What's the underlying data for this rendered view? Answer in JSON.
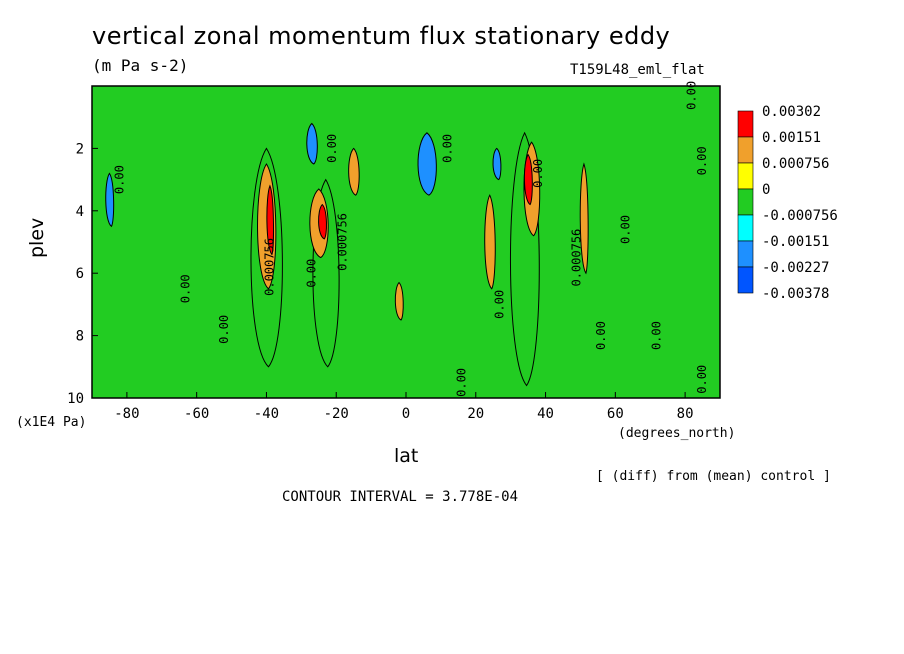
{
  "title": "vertical zonal momentum flux stationary eddy",
  "units": "(m Pa s-2)",
  "run_label": "T159L48_eml_flat",
  "y_unit": "(x1E4 Pa)",
  "x_unit": "(degrees_north)",
  "note": "[ (diff) from (mean) control ]",
  "contour_interval": "CONTOUR INTERVAL = 3.778E-04",
  "chart_data": {
    "type": "heatmap",
    "xlabel": "lat",
    "ylabel": "plev",
    "xlim": [
      -90,
      90
    ],
    "ylim": [
      0,
      10
    ],
    "x_ticks": [
      -80,
      -60,
      -40,
      -20,
      0,
      20,
      40,
      60,
      80
    ],
    "y_ticks": [
      2,
      4,
      6,
      8,
      10
    ],
    "colorbar": {
      "labels": [
        "0.00302",
        "0.00151",
        "0.000756",
        "0",
        "-0.000756",
        "-0.00151",
        "-0.00227",
        "-0.00378"
      ],
      "colors": [
        "#ff0000",
        "#f0a02c",
        "#ffff00",
        "#22cc22",
        "#00ffff",
        "#1e90ff",
        "#0055ff"
      ]
    },
    "contour_labels": [
      {
        "text": "0.00",
        "lat": -81,
        "plev": 3.0
      },
      {
        "text": "0.00",
        "lat": -62,
        "plev": 6.5
      },
      {
        "text": "0.00",
        "lat": -51,
        "plev": 7.8
      },
      {
        "text": "0.000756",
        "lat": -38,
        "plev": 5.8
      },
      {
        "text": "0.00",
        "lat": -26,
        "plev": 6.0
      },
      {
        "text": "0.000756",
        "lat": -17,
        "plev": 5.0
      },
      {
        "text": "0.00",
        "lat": -20,
        "plev": 2.0
      },
      {
        "text": "0.00",
        "lat": 13,
        "plev": 2.0
      },
      {
        "text": "0.00",
        "lat": 17,
        "plev": 9.5
      },
      {
        "text": "0.00",
        "lat": 28,
        "plev": 7.0
      },
      {
        "text": "0.00",
        "lat": 39,
        "plev": 2.8
      },
      {
        "text": "0.000756",
        "lat": 50,
        "plev": 5.5
      },
      {
        "text": "0.00",
        "lat": 57,
        "plev": 8.0
      },
      {
        "text": "0.00",
        "lat": 64,
        "plev": 4.6
      },
      {
        "text": "0.00",
        "lat": 73,
        "plev": 8.0
      },
      {
        "text": "0.00",
        "lat": 86,
        "plev": 2.4
      },
      {
        "text": "0.00",
        "lat": 86,
        "plev": 9.4
      },
      {
        "text": "0.00",
        "lat": 83,
        "plev": 0.3
      }
    ],
    "features": [
      {
        "level": "0",
        "lat": -40,
        "width": 12,
        "plev_top": 2.0,
        "plev_bottom": 9.0
      },
      {
        "level": "0.00151",
        "lat": -40,
        "width": 7,
        "plev_top": 2.5,
        "plev_bottom": 6.5
      },
      {
        "level": "0.00302",
        "lat": -39,
        "width": 2.5,
        "plev_top": 3.2,
        "plev_bottom": 5.4
      },
      {
        "level": "0",
        "lat": -23,
        "width": 10,
        "plev_top": 3.0,
        "plev_bottom": 9.0
      },
      {
        "level": "0.00151",
        "lat": -25,
        "width": 7,
        "plev_top": 3.3,
        "plev_bottom": 5.5
      },
      {
        "level": "0.00302",
        "lat": -24,
        "width": 3,
        "plev_top": 3.8,
        "plev_bottom": 4.9
      },
      {
        "level": "0.00151",
        "lat": -15,
        "width": 4,
        "plev_top": 2.0,
        "plev_bottom": 3.5
      },
      {
        "level": "0.00151",
        "lat": -2,
        "width": 3,
        "plev_top": 6.3,
        "plev_bottom": 7.5
      },
      {
        "level": "0",
        "lat": 34,
        "width": 11,
        "plev_top": 1.5,
        "plev_bottom": 9.6
      },
      {
        "level": "0.00151",
        "lat": 36,
        "width": 6,
        "plev_top": 1.8,
        "plev_bottom": 4.8
      },
      {
        "level": "0.00302",
        "lat": 35,
        "width": 3,
        "plev_top": 2.2,
        "plev_bottom": 3.8
      },
      {
        "level": "0.00151",
        "lat": 24,
        "width": 4,
        "plev_top": 3.5,
        "plev_bottom": 6.5
      },
      {
        "level": "0.00151",
        "lat": 51,
        "width": 3,
        "plev_top": 2.5,
        "plev_bottom": 6.0
      },
      {
        "level": "-0.00151",
        "lat": 6,
        "width": 7,
        "plev_top": 1.5,
        "plev_bottom": 3.5
      },
      {
        "level": "-0.00151",
        "lat": -27,
        "width": 4,
        "plev_top": 1.2,
        "plev_bottom": 2.5
      },
      {
        "level": "-0.00151",
        "lat": -85,
        "width": 3,
        "plev_top": 2.8,
        "plev_bottom": 4.5
      },
      {
        "level": "-0.00151",
        "lat": 26,
        "width": 3,
        "plev_top": 2.0,
        "plev_bottom": 3.0
      }
    ]
  }
}
